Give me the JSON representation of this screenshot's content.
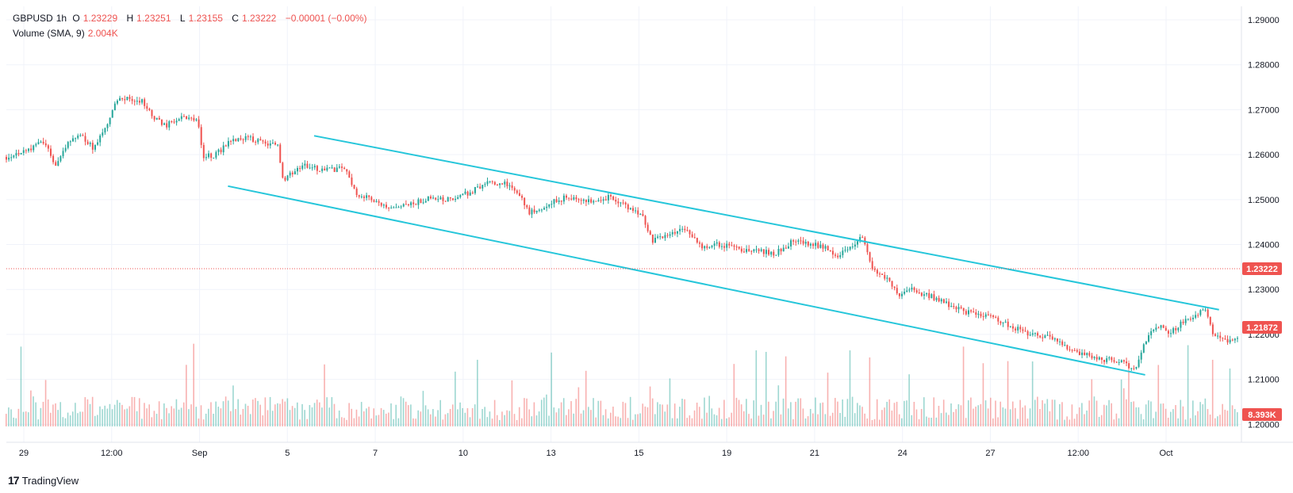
{
  "header": {
    "symbol": "GBPUSD",
    "interval": "1h",
    "open_label": "O",
    "open": "1.23229",
    "high_label": "H",
    "high": "1.23251",
    "low_label": "L",
    "low": "1.23155",
    "close_label": "C",
    "close": "1.23222",
    "change": "−0.00001 (−0.00%)",
    "volume_label": "Volume (SMA, 9)",
    "volume_value": "2.004K"
  },
  "branding": {
    "logo_mark": "17",
    "logo_text": "TradingView"
  },
  "colors": {
    "up": "#26a69a",
    "down": "#ef5350",
    "channel": "#26c6da",
    "grid": "#f0f3fa",
    "axis_text": "#131722"
  },
  "chart_data": {
    "type": "candlestick",
    "title": "GBPUSD, 1h",
    "price_axis": {
      "ticks": [
        "1.29000",
        "1.28000",
        "1.27000",
        "1.26000",
        "1.25000",
        "1.24000",
        "1.23000",
        "1.22000",
        "1.21000",
        "1.20000"
      ],
      "range": [
        1.196,
        1.293
      ]
    },
    "time_axis": {
      "labels": [
        "29",
        "12:00",
        "Sep",
        "5",
        "7",
        "10",
        "13",
        "15",
        "19",
        "21",
        "24",
        "27",
        "12:00",
        "Oct"
      ]
    },
    "price_series": [
      [
        0,
        1.2595
      ],
      [
        0.02,
        1.2615
      ],
      [
        0.03,
        1.263
      ],
      [
        0.04,
        1.2575
      ],
      [
        0.05,
        1.263
      ],
      [
        0.06,
        1.2645
      ],
      [
        0.07,
        1.2615
      ],
      [
        0.08,
        1.2655
      ],
      [
        0.09,
        1.272
      ],
      [
        0.1,
        1.2725
      ],
      [
        0.11,
        1.272
      ],
      [
        0.12,
        1.268
      ],
      [
        0.13,
        1.2665
      ],
      [
        0.14,
        1.268
      ],
      [
        0.155,
        1.268
      ],
      [
        0.16,
        1.2595
      ],
      [
        0.17,
        1.26
      ],
      [
        0.18,
        1.2625
      ],
      [
        0.195,
        1.264
      ],
      [
        0.21,
        1.2625
      ],
      [
        0.22,
        1.2625
      ],
      [
        0.225,
        1.2545
      ],
      [
        0.24,
        1.2575
      ],
      [
        0.26,
        1.2565
      ],
      [
        0.275,
        1.257
      ],
      [
        0.285,
        1.251
      ],
      [
        0.3,
        1.25
      ],
      [
        0.31,
        1.2475
      ],
      [
        0.33,
        1.249
      ],
      [
        0.345,
        1.2505
      ],
      [
        0.36,
        1.25
      ],
      [
        0.375,
        1.2515
      ],
      [
        0.39,
        1.2535
      ],
      [
        0.405,
        1.2535
      ],
      [
        0.415,
        1.252
      ],
      [
        0.425,
        1.247
      ],
      [
        0.44,
        1.249
      ],
      [
        0.455,
        1.2505
      ],
      [
        0.47,
        1.2495
      ],
      [
        0.48,
        1.25
      ],
      [
        0.49,
        1.2505
      ],
      [
        0.5,
        1.249
      ],
      [
        0.515,
        1.247
      ],
      [
        0.525,
        1.241
      ],
      [
        0.54,
        1.242
      ],
      [
        0.55,
        1.244
      ],
      [
        0.565,
        1.2395
      ],
      [
        0.58,
        1.24
      ],
      [
        0.595,
        1.239
      ],
      [
        0.61,
        1.2385
      ],
      [
        0.625,
        1.238
      ],
      [
        0.64,
        1.241
      ],
      [
        0.655,
        1.24
      ],
      [
        0.665,
        1.2395
      ],
      [
        0.675,
        1.2375
      ],
      [
        0.685,
        1.239
      ],
      [
        0.695,
        1.2415
      ],
      [
        0.705,
        1.234
      ],
      [
        0.715,
        1.2325
      ],
      [
        0.725,
        1.229
      ],
      [
        0.735,
        1.23
      ],
      [
        0.745,
        1.229
      ],
      [
        0.76,
        1.2275
      ],
      [
        0.77,
        1.226
      ],
      [
        0.785,
        1.2245
      ],
      [
        0.8,
        1.224
      ],
      [
        0.815,
        1.222
      ],
      [
        0.83,
        1.22
      ],
      [
        0.845,
        1.2195
      ],
      [
        0.86,
        1.2175
      ],
      [
        0.875,
        1.2155
      ],
      [
        0.89,
        1.2145
      ],
      [
        0.905,
        1.214
      ],
      [
        0.915,
        1.2125
      ],
      [
        0.92,
        1.214
      ],
      [
        0.925,
        1.2185
      ],
      [
        0.935,
        1.222
      ],
      [
        0.945,
        1.2205
      ],
      [
        0.955,
        1.2225
      ],
      [
        0.965,
        1.2245
      ],
      [
        0.975,
        1.2255
      ],
      [
        0.98,
        1.22
      ],
      [
        0.99,
        1.2187
      ],
      [
        1,
        1.219
      ]
    ],
    "channel_upper": {
      "start": [
        0.25,
        1.2642
      ],
      "end": [
        0.985,
        1.2255
      ]
    },
    "channel_lower": {
      "start": [
        0.18,
        1.253
      ],
      "end": [
        0.925,
        1.211
      ]
    },
    "last_price": "1.23222",
    "last_price_level": 1.2322,
    "tag_price": "1.21872",
    "tag_price_level": 1.2187,
    "volume_tag": "8.393K"
  }
}
